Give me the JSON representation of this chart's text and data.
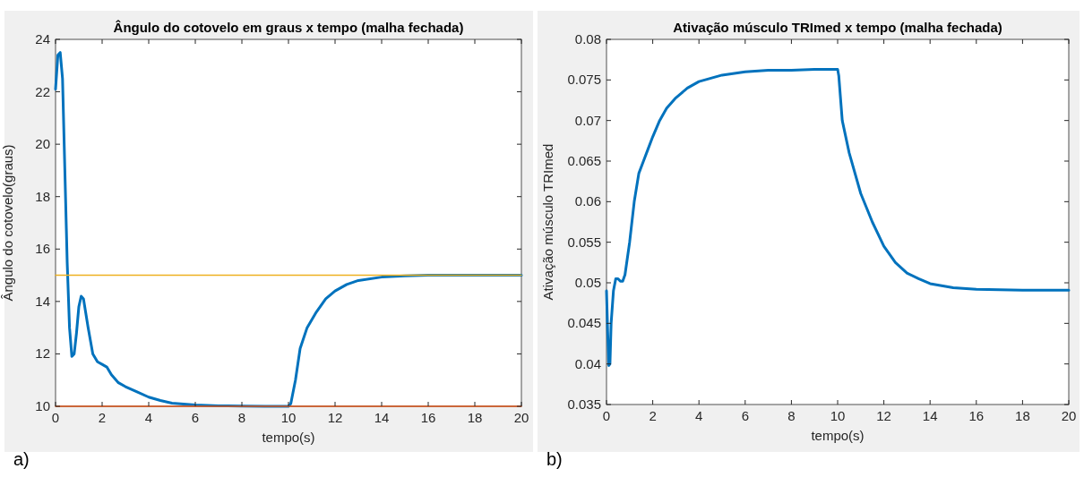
{
  "chart_data": [
    {
      "type": "line",
      "title": "Ângulo do cotovelo em graus x tempo (malha fechada)",
      "xlabel": "tempo(s)",
      "ylabel": "Ângulo do cotovelo(graus)",
      "annotations": [
        "a)"
      ],
      "xlim": [
        0,
        20
      ],
      "ylim": [
        10,
        24
      ],
      "xticks": [
        0,
        2,
        4,
        6,
        8,
        10,
        12,
        14,
        16,
        18,
        20
      ],
      "yticks": [
        10,
        12,
        14,
        16,
        18,
        20,
        22,
        24
      ],
      "grid": false,
      "series": [
        {
          "color": "#0072bd",
          "x": [
            0,
            0.1,
            0.2,
            0.3,
            0.4,
            0.5,
            0.6,
            0.7,
            0.8,
            0.9,
            1.0,
            1.1,
            1.2,
            1.4,
            1.6,
            1.8,
            2.0,
            2.2,
            2.4,
            2.7,
            3,
            3.5,
            4,
            4.5,
            5,
            6,
            7,
            8,
            9,
            10,
            10.1,
            10.3,
            10.5,
            10.8,
            11.2,
            11.6,
            12,
            12.5,
            13,
            14,
            15,
            16,
            18,
            20
          ],
          "values": [
            22.1,
            23.4,
            23.5,
            22.5,
            19,
            15.5,
            13,
            11.9,
            12.0,
            12.8,
            13.8,
            14.2,
            14.1,
            13,
            12,
            11.7,
            11.6,
            11.5,
            11.2,
            10.9,
            10.75,
            10.55,
            10.35,
            10.22,
            10.12,
            10.05,
            10.02,
            10.01,
            10,
            10,
            10.1,
            11,
            12.2,
            13,
            13.6,
            14.1,
            14.4,
            14.65,
            14.8,
            14.93,
            14.98,
            15,
            15,
            15
          ]
        },
        {
          "color": "#d95319",
          "x": [
            0,
            20
          ],
          "values": [
            10,
            10
          ]
        },
        {
          "color": "#edb120",
          "x": [
            0,
            20
          ],
          "values": [
            15,
            15
          ]
        }
      ]
    },
    {
      "type": "line",
      "title": "Ativação músculo TRImed x tempo (malha fechada)",
      "xlabel": "tempo(s)",
      "ylabel": "Ativação músculo TRImed",
      "annotations": [
        "b)"
      ],
      "xlim": [
        0,
        20
      ],
      "ylim": [
        0.035,
        0.08
      ],
      "xticks": [
        0,
        2,
        4,
        6,
        8,
        10,
        12,
        14,
        16,
        18,
        20
      ],
      "yticks": [
        0.035,
        0.04,
        0.045,
        0.05,
        0.055,
        0.06,
        0.065,
        0.07,
        0.075,
        0.08
      ],
      "grid": false,
      "series": [
        {
          "color": "#0072bd",
          "x": [
            0,
            0.05,
            0.1,
            0.15,
            0.2,
            0.3,
            0.4,
            0.5,
            0.6,
            0.7,
            0.8,
            1.0,
            1.2,
            1.4,
            1.6,
            1.8,
            2,
            2.3,
            2.6,
            3,
            3.5,
            4,
            5,
            6,
            7,
            8,
            9,
            10,
            10.05,
            10.2,
            10.5,
            11,
            11.5,
            12,
            12.5,
            13,
            13.5,
            14,
            15,
            16,
            18,
            20
          ],
          "values": [
            0.049,
            0.044,
            0.0398,
            0.04,
            0.045,
            0.049,
            0.0505,
            0.0505,
            0.0502,
            0.0502,
            0.051,
            0.055,
            0.06,
            0.0635,
            0.065,
            0.0665,
            0.068,
            0.07,
            0.0715,
            0.0728,
            0.074,
            0.0748,
            0.0756,
            0.076,
            0.0762,
            0.0762,
            0.0763,
            0.0763,
            0.0755,
            0.07,
            0.066,
            0.061,
            0.0575,
            0.0545,
            0.0525,
            0.0512,
            0.0505,
            0.0499,
            0.0494,
            0.0492,
            0.0491,
            0.0491
          ]
        }
      ]
    }
  ]
}
